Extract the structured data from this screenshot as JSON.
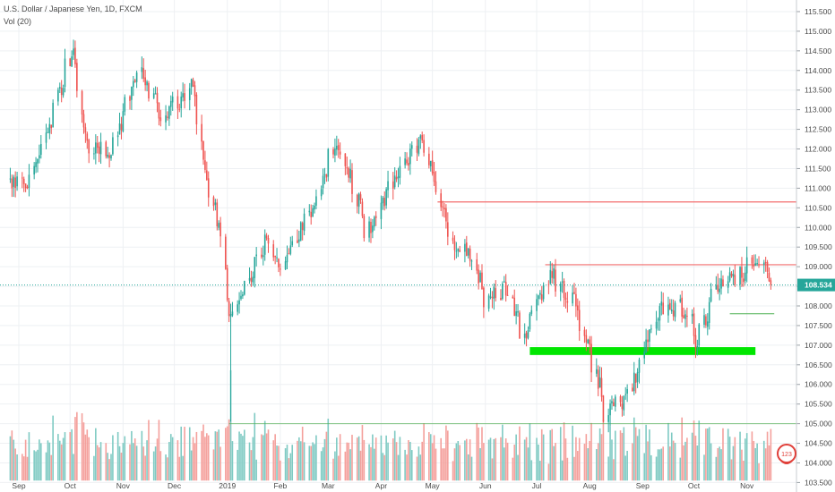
{
  "header": {
    "symbol_line": "U.S. Dollar / Japanese Yen, 1D, FXCM",
    "study_line": "Vol (20)"
  },
  "colors": {
    "up": "#26a69a",
    "down": "#ef5350",
    "vol_up": "#7fcac3",
    "vol_down": "#f4a09c",
    "resistance": "#f26d6d",
    "support_zone": "#00e600",
    "support_line": "#4caf50",
    "price_label_bg": "#26a69a",
    "grid": "#eef0f3",
    "axis_text": "#4a4a4a"
  },
  "chart_data": {
    "type": "candlestick",
    "title": "U.S. Dollar / Japanese Yen, 1D, FXCM",
    "x_tick_labels": [
      "Sep",
      "Oct",
      "Nov",
      "Dec",
      "2019",
      "Feb",
      "Mar",
      "Apr",
      "May",
      "Jun",
      "Jul",
      "Aug",
      "Sep",
      "Oct",
      "Nov"
    ],
    "y_tick_labels": [
      "115.500",
      "115.000",
      "114.500",
      "114.000",
      "113.500",
      "113.000",
      "112.500",
      "112.000",
      "111.500",
      "111.000",
      "110.500",
      "110.000",
      "109.500",
      "109.000",
      "108.500",
      "108.000",
      "107.500",
      "107.000",
      "106.500",
      "106.000",
      "105.500",
      "105.000",
      "104.500",
      "104.000",
      "103.500"
    ],
    "y_range": [
      103.35,
      115.75
    ],
    "last_price": "108.534",
    "last_value": 108.534,
    "price_anchors": [
      [
        "Aug 25 2018",
        111.3
      ],
      [
        "Sep 8 2018",
        111.0
      ],
      [
        "Sep 28 2018",
        113.7
      ],
      [
        "Oct 4 2018",
        114.55
      ],
      [
        "Oct 12 2018",
        112.2
      ],
      [
        "Oct 26 2018",
        111.9
      ],
      [
        "Nov 12 2018",
        114.05
      ],
      [
        "Nov 25 2018",
        112.8
      ],
      [
        "Dec 13 2018",
        113.6
      ],
      [
        "Dec 21 2018",
        111.2
      ],
      [
        "Dec 31 2018",
        109.6
      ],
      [
        "Jan 3 2019",
        107.7
      ],
      [
        "Jan 10 2019",
        108.3
      ],
      [
        "Jan 24 2019",
        109.6
      ],
      [
        "Feb 3 2019",
        109.1
      ],
      [
        "Feb 24 2019",
        110.8
      ],
      [
        "Mar 5 2019",
        112.0
      ],
      [
        "Mar 14 2019",
        111.5
      ],
      [
        "Mar 25 2019",
        109.9
      ],
      [
        "Apr 10 2019",
        111.2
      ],
      [
        "Apr 24 2019",
        112.2
      ],
      [
        "May 3 2019",
        111.3
      ],
      [
        "May 13 2019",
        109.6
      ],
      [
        "May 24 2019",
        109.4
      ],
      [
        "Jun 3 2019",
        108.1
      ],
      [
        "Jun 14 2019",
        108.5
      ],
      [
        "Jun 25 2019",
        107.3
      ],
      [
        "Jul 10 2019",
        108.8
      ],
      [
        "Jul 25 2019",
        108.1
      ],
      [
        "Aug 2 2019",
        106.9
      ],
      [
        "Aug 12 2019",
        105.3
      ],
      [
        "Aug 26 2019",
        105.8
      ],
      [
        "Sep 12 2019",
        108.0
      ],
      [
        "Sep 30 2019",
        107.9
      ],
      [
        "Oct 3 2019",
        106.9
      ],
      [
        "Oct 15 2019",
        108.5
      ],
      [
        "Oct 30 2019",
        108.8
      ],
      [
        "Nov 6 2019",
        109.2
      ],
      [
        "Nov 12 2019",
        109.0
      ],
      [
        "Nov 16 2019",
        108.53
      ]
    ],
    "annotations": {
      "resistance_lines": [
        {
          "from": "May 4 2019",
          "to": "Nov 30 2019",
          "price": 110.65
        },
        {
          "from": "Jul 6 2019",
          "to": "Nov 30 2019",
          "price": 109.05
        }
      ],
      "support_zone": {
        "from": "Jun 27 2019",
        "to": "Nov 6 2019",
        "top": 106.95,
        "bottom": 106.75
      },
      "support_line": {
        "from": "Oct 22 2019",
        "to": "Nov 17 2019",
        "price": 107.8
      },
      "volume_average_level": 105.0
    },
    "volume_panel": {
      "study": "Vol (20)",
      "baseline": 103.55,
      "average_level": 105.0
    }
  },
  "badge": {
    "label": "123"
  }
}
